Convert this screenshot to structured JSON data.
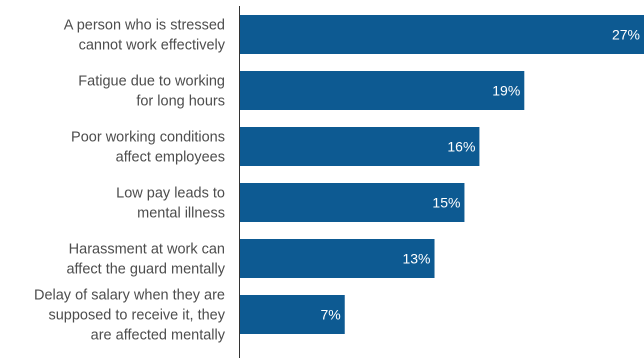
{
  "chart_data": {
    "type": "bar",
    "orientation": "horizontal",
    "categories": [
      [
        "A person who is stressed",
        "cannot work effectively"
      ],
      [
        "Fatigue due to working",
        "for long hours"
      ],
      [
        "Poor working conditions",
        "affect employees"
      ],
      [
        "Low pay leads to",
        "mental illness"
      ],
      [
        "Harassment at work can",
        "affect the guard mentally"
      ],
      [
        "Delay of salary when they are",
        "supposed to receive it, they",
        "are affected mentally"
      ]
    ],
    "values": [
      27,
      19,
      16,
      15,
      13,
      7
    ],
    "value_labels": [
      "27%",
      "19%",
      "16%",
      "15%",
      "13%",
      "7%"
    ],
    "xlim": [
      0,
      27
    ],
    "bar_color": "#0d5a92",
    "grid": false,
    "legend": "none"
  }
}
